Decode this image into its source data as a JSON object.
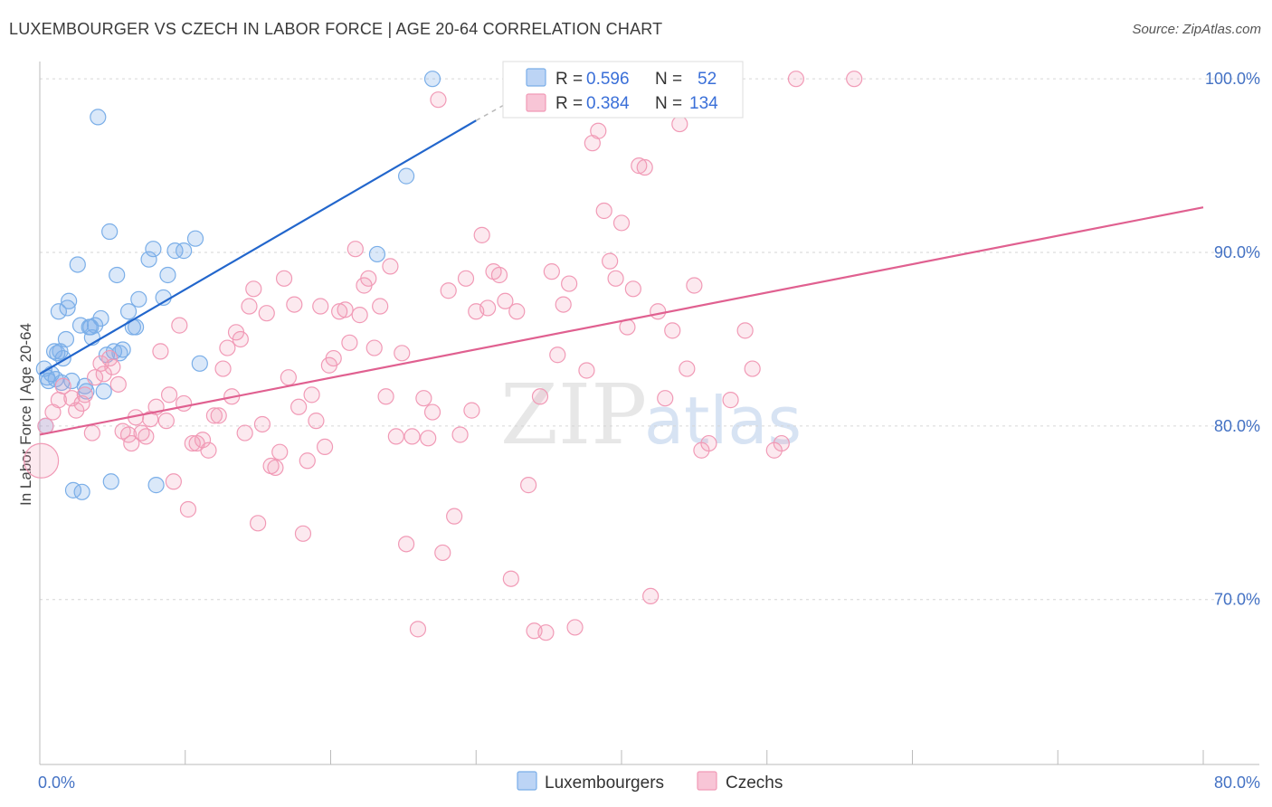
{
  "chart_data": {
    "type": "scatter",
    "title": "LUXEMBOURGER VS CZECH IN LABOR FORCE | AGE 20-64 CORRELATION CHART",
    "source": "Source: ZipAtlas.com",
    "xlabel": "",
    "ylabel": "In Labor Force | Age 20-64",
    "xlim": [
      0,
      80
    ],
    "ylim": [
      60.5,
      101
    ],
    "x_tick_labels": [
      {
        "value": 0,
        "label": "0.0%"
      },
      {
        "value": 80,
        "label": "80.0%"
      }
    ],
    "y_tick_labels": [
      {
        "value": 70,
        "label": "70.0%"
      },
      {
        "value": 80,
        "label": "80.0%"
      },
      {
        "value": 90,
        "label": "90.0%"
      },
      {
        "value": 100,
        "label": "100.0%"
      }
    ],
    "watermark": {
      "part1": "ZIP",
      "part2": "atlas"
    },
    "legend": {
      "r_label": "R =",
      "n_label": "N =",
      "entries": [
        {
          "name": "Luxembourgers",
          "r": "0.596",
          "n": "52",
          "color": "#7aaee8"
        },
        {
          "name": "Czechs",
          "r": "0.384",
          "n": "134",
          "color": "#f19ab6"
        }
      ]
    },
    "series": [
      {
        "name": "Luxembourgers",
        "color": "#7aaee8",
        "line_color": "#2266cc",
        "trend": {
          "x0": 0,
          "y0": 83,
          "x1": 30,
          "y1": 97.6,
          "dash_to_x": 33,
          "dash_to_y": 99
        },
        "points": [
          [
            0.3,
            83.3
          ],
          [
            0.5,
            82.8
          ],
          [
            0.6,
            82.6
          ],
          [
            0.8,
            83.0
          ],
          [
            1.0,
            84.3
          ],
          [
            1.1,
            82.7
          ],
          [
            1.2,
            84.2
          ],
          [
            1.3,
            86.6
          ],
          [
            1.5,
            82.5
          ],
          [
            1.6,
            83.9
          ],
          [
            1.8,
            85.0
          ],
          [
            1.9,
            86.8
          ],
          [
            2.0,
            87.2
          ],
          [
            2.2,
            82.6
          ],
          [
            2.3,
            76.3
          ],
          [
            2.6,
            89.3
          ],
          [
            2.8,
            85.8
          ],
          [
            2.9,
            76.2
          ],
          [
            3.1,
            82.3
          ],
          [
            3.2,
            82.0
          ],
          [
            3.4,
            85.7
          ],
          [
            3.6,
            85.1
          ],
          [
            3.8,
            85.8
          ],
          [
            4.0,
            97.8
          ],
          [
            4.2,
            86.2
          ],
          [
            4.4,
            82.0
          ],
          [
            4.6,
            84.1
          ],
          [
            4.8,
            91.2
          ],
          [
            4.9,
            76.8
          ],
          [
            5.1,
            84.3
          ],
          [
            5.3,
            88.7
          ],
          [
            5.7,
            84.4
          ],
          [
            6.1,
            86.6
          ],
          [
            6.4,
            85.7
          ],
          [
            6.6,
            85.7
          ],
          [
            6.8,
            87.3
          ],
          [
            7.5,
            89.6
          ],
          [
            7.8,
            90.2
          ],
          [
            8.0,
            76.6
          ],
          [
            8.5,
            87.4
          ],
          [
            8.8,
            88.7
          ],
          [
            9.3,
            90.1
          ],
          [
            9.9,
            90.1
          ],
          [
            10.7,
            90.8
          ],
          [
            11.0,
            83.6
          ],
          [
            23.2,
            89.9
          ],
          [
            25.2,
            94.4
          ],
          [
            27.0,
            100.0
          ],
          [
            0.4,
            80.0
          ],
          [
            1.4,
            84.3
          ],
          [
            3.5,
            85.7
          ],
          [
            5.5,
            84.2
          ]
        ]
      },
      {
        "name": "Czechs",
        "color": "#f19ab6",
        "line_color": "#e06090",
        "trend": {
          "x0": 0,
          "y0": 79.5,
          "x1": 80,
          "y1": 92.6
        },
        "points": [
          [
            0.1,
            78.0
          ],
          [
            0.4,
            80.0
          ],
          [
            0.9,
            80.8
          ],
          [
            1.3,
            81.5
          ],
          [
            1.6,
            82.3
          ],
          [
            2.2,
            81.6
          ],
          [
            2.5,
            80.9
          ],
          [
            2.9,
            81.3
          ],
          [
            3.1,
            81.8
          ],
          [
            3.6,
            79.6
          ],
          [
            3.8,
            82.8
          ],
          [
            4.2,
            83.6
          ],
          [
            4.4,
            83.0
          ],
          [
            4.8,
            83.9
          ],
          [
            5.0,
            83.4
          ],
          [
            5.4,
            82.4
          ],
          [
            5.7,
            79.7
          ],
          [
            6.1,
            79.5
          ],
          [
            6.3,
            79.0
          ],
          [
            6.6,
            80.5
          ],
          [
            7.0,
            79.6
          ],
          [
            7.3,
            79.4
          ],
          [
            7.6,
            80.4
          ],
          [
            8.0,
            81.1
          ],
          [
            8.3,
            84.3
          ],
          [
            8.7,
            80.3
          ],
          [
            8.9,
            81.8
          ],
          [
            9.2,
            76.8
          ],
          [
            9.6,
            85.8
          ],
          [
            9.9,
            81.3
          ],
          [
            10.2,
            75.2
          ],
          [
            10.5,
            79.0
          ],
          [
            10.8,
            79.0
          ],
          [
            11.2,
            79.2
          ],
          [
            11.6,
            78.6
          ],
          [
            12.0,
            80.6
          ],
          [
            12.3,
            80.6
          ],
          [
            12.6,
            83.3
          ],
          [
            12.9,
            84.5
          ],
          [
            13.2,
            81.7
          ],
          [
            13.5,
            85.4
          ],
          [
            13.8,
            85.0
          ],
          [
            14.1,
            79.6
          ],
          [
            14.4,
            86.9
          ],
          [
            14.7,
            87.9
          ],
          [
            15.0,
            74.4
          ],
          [
            15.3,
            80.1
          ],
          [
            15.6,
            86.5
          ],
          [
            15.9,
            77.7
          ],
          [
            16.2,
            77.6
          ],
          [
            16.5,
            78.5
          ],
          [
            16.8,
            88.5
          ],
          [
            17.1,
            82.8
          ],
          [
            17.5,
            87.0
          ],
          [
            17.8,
            81.1
          ],
          [
            18.1,
            73.8
          ],
          [
            18.4,
            78.0
          ],
          [
            18.7,
            81.8
          ],
          [
            19.0,
            80.3
          ],
          [
            19.3,
            86.9
          ],
          [
            19.6,
            78.8
          ],
          [
            19.9,
            83.5
          ],
          [
            20.2,
            83.9
          ],
          [
            20.6,
            86.6
          ],
          [
            21.0,
            86.7
          ],
          [
            21.3,
            84.8
          ],
          [
            21.7,
            90.2
          ],
          [
            22.0,
            86.4
          ],
          [
            22.3,
            88.1
          ],
          [
            22.6,
            88.5
          ],
          [
            23.0,
            84.5
          ],
          [
            23.4,
            86.9
          ],
          [
            23.8,
            81.7
          ],
          [
            24.1,
            89.2
          ],
          [
            24.5,
            79.4
          ],
          [
            24.9,
            84.2
          ],
          [
            25.2,
            73.2
          ],
          [
            25.6,
            79.4
          ],
          [
            26.0,
            68.3
          ],
          [
            26.4,
            81.6
          ],
          [
            26.7,
            79.3
          ],
          [
            27.0,
            80.8
          ],
          [
            27.4,
            98.8
          ],
          [
            27.7,
            72.7
          ],
          [
            28.1,
            87.8
          ],
          [
            28.5,
            74.8
          ],
          [
            28.9,
            79.5
          ],
          [
            29.3,
            88.5
          ],
          [
            29.7,
            80.9
          ],
          [
            30.0,
            86.6
          ],
          [
            30.4,
            91.0
          ],
          [
            30.8,
            86.8
          ],
          [
            31.2,
            88.9
          ],
          [
            31.6,
            88.7
          ],
          [
            32.0,
            87.2
          ],
          [
            32.4,
            71.2
          ],
          [
            32.8,
            86.6
          ],
          [
            33.2,
            100.0
          ],
          [
            33.6,
            76.6
          ],
          [
            34.0,
            68.2
          ],
          [
            34.4,
            81.7
          ],
          [
            34.8,
            68.1
          ],
          [
            35.2,
            88.9
          ],
          [
            35.6,
            84.1
          ],
          [
            36.0,
            87.0
          ],
          [
            36.4,
            88.2
          ],
          [
            36.8,
            68.4
          ],
          [
            37.2,
            100.0
          ],
          [
            37.6,
            83.2
          ],
          [
            38.0,
            96.3
          ],
          [
            38.4,
            97.0
          ],
          [
            38.8,
            92.4
          ],
          [
            39.2,
            89.5
          ],
          [
            39.6,
            88.5
          ],
          [
            40.0,
            91.7
          ],
          [
            40.4,
            85.7
          ],
          [
            40.8,
            87.9
          ],
          [
            41.2,
            95.0
          ],
          [
            41.6,
            94.9
          ],
          [
            42.0,
            70.2
          ],
          [
            42.5,
            86.6
          ],
          [
            43.0,
            81.6
          ],
          [
            43.5,
            85.5
          ],
          [
            44.0,
            97.4
          ],
          [
            44.5,
            83.3
          ],
          [
            45.0,
            88.1
          ],
          [
            45.5,
            78.6
          ],
          [
            46.0,
            79.0
          ],
          [
            46.5,
            100.0
          ],
          [
            47.5,
            81.5
          ],
          [
            48.5,
            85.5
          ],
          [
            49.0,
            83.3
          ],
          [
            50.5,
            78.6
          ],
          [
            51.0,
            79.0
          ],
          [
            52.0,
            100.0
          ],
          [
            56.0,
            100.0
          ]
        ]
      }
    ]
  }
}
